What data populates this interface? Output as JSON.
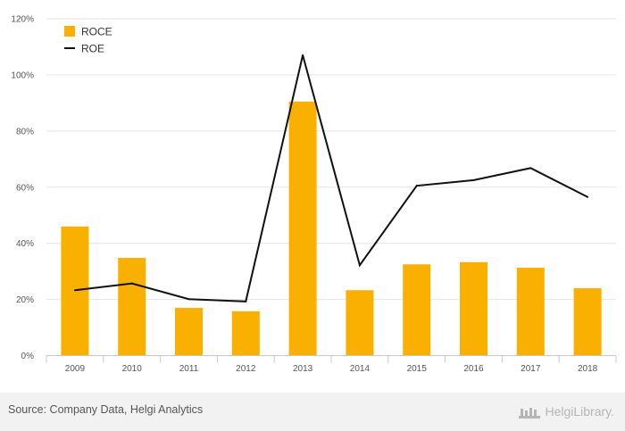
{
  "chart_data": {
    "type": "bar",
    "categories": [
      "2009",
      "2010",
      "2011",
      "2012",
      "2013",
      "2014",
      "2015",
      "2016",
      "2017",
      "2018"
    ],
    "series": [
      {
        "name": "ROCE",
        "type": "bar",
        "color": "#f9b000",
        "values": [
          46,
          34.8,
          17,
          15.8,
          90.5,
          23.3,
          32.5,
          33.3,
          31.3,
          24
        ]
      },
      {
        "name": "ROE",
        "type": "line",
        "color": "#111111",
        "values": [
          23.3,
          25.7,
          20.1,
          19.3,
          107,
          32.2,
          60.5,
          62.5,
          66.8,
          56.5
        ]
      }
    ],
    "ylim": [
      0,
      120
    ],
    "yticks": [
      "0%",
      "20%",
      "40%",
      "60%",
      "80%",
      "100%",
      "120%"
    ],
    "ytick_values": [
      0,
      20,
      40,
      60,
      80,
      100,
      120
    ],
    "grid": true,
    "legend": "top-left"
  },
  "footer": {
    "source": "Source: Company Data, Helgi Analytics",
    "logo_text": "HelgiLibrary."
  }
}
